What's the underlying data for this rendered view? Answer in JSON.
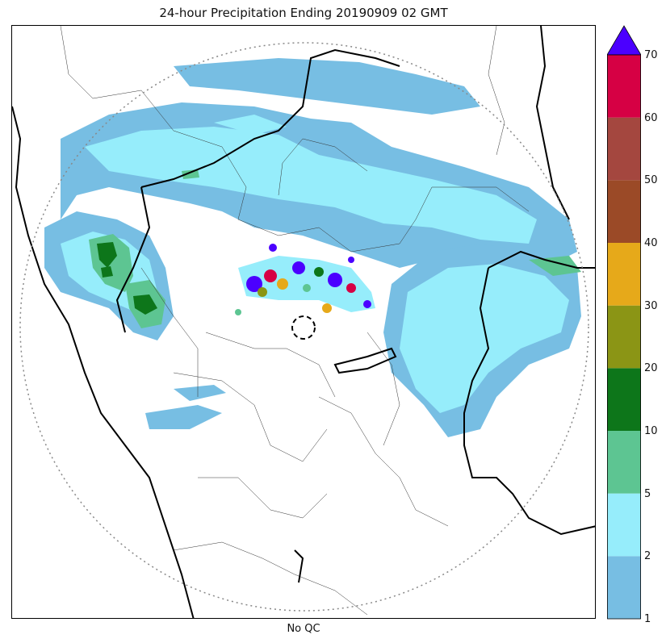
{
  "title": "24-hour Precipitation Ending 20190909 02 GMT",
  "xlabel": "No QC",
  "colorbar": {
    "levels": [
      "1",
      "2",
      "5",
      "10",
      "20",
      "30",
      "40",
      "50",
      "60",
      "70"
    ],
    "colors": [
      "#77bee3",
      "#96edfb",
      "#5dc592",
      "#0d761a",
      "#8b9515",
      "#e6a91a",
      "#9b4a27",
      "#a4473f",
      "#d60044"
    ],
    "extend_color": "#4b00ff"
  },
  "map": {
    "range_ring_style": "dotted",
    "radar_marker_style": "dashed-circle"
  }
}
